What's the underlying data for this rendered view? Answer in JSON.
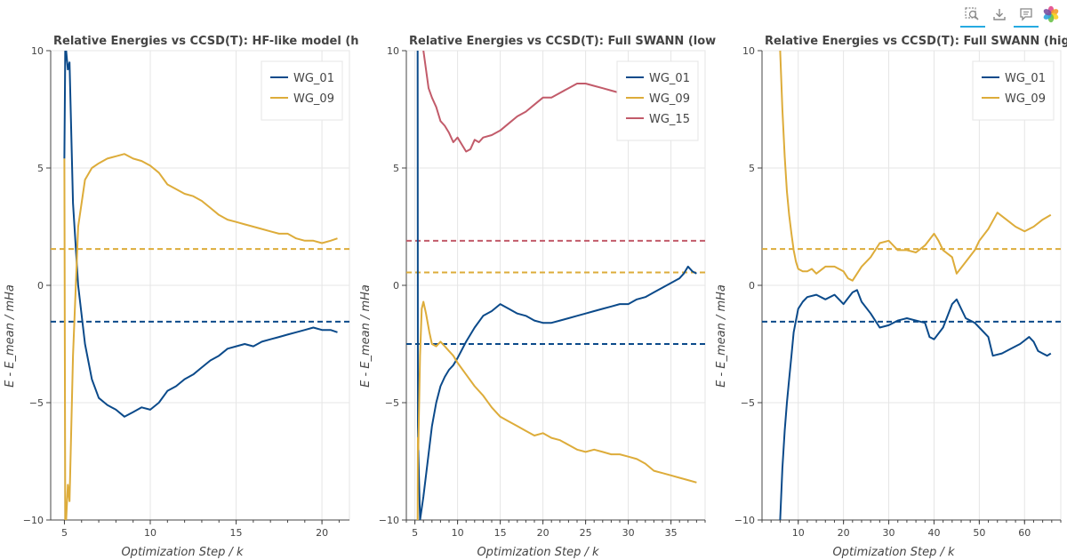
{
  "toolbar": {
    "icons": [
      "box-zoom-icon",
      "save-icon",
      "hover-icon",
      "bokeh-logo"
    ]
  },
  "colors": {
    "WG_01": "#0b4a8a",
    "WG_09": "#ddac3a",
    "WG_15": "#c25b6a"
  },
  "chart_data": [
    {
      "type": "line",
      "title": "Relative Energies vs CCSD(T): HF-like model (h",
      "xlabel": "Optimization Step / k",
      "ylabel": "E - E_mean / mHa",
      "xlim": [
        4.2,
        21.6
      ],
      "ylim": [
        -10,
        10
      ],
      "xticks": [
        5,
        10,
        15,
        20
      ],
      "yticks": [
        -10,
        -5,
        0,
        5,
        10
      ],
      "grid": true,
      "legend": "top-right",
      "series": [
        {
          "name": "WG_01",
          "color": "#0b4a8a",
          "x": [
            5.0,
            5.05,
            5.1,
            5.2,
            5.3,
            5.5,
            5.8,
            6.2,
            6.6,
            7.0,
            7.5,
            8.0,
            8.5,
            9.0,
            9.5,
            10.0,
            10.5,
            11.0,
            11.5,
            12.0,
            12.5,
            13.0,
            13.5,
            14.0,
            14.5,
            15.0,
            15.5,
            16.0,
            16.5,
            17.0,
            17.5,
            18.0,
            18.5,
            19.0,
            19.5,
            20.0,
            20.5,
            20.9
          ],
          "y": [
            5.4,
            10.0,
            10.0,
            9.2,
            9.5,
            3.5,
            0.0,
            -2.5,
            -4.0,
            -4.8,
            -5.1,
            -5.3,
            -5.6,
            -5.4,
            -5.2,
            -5.3,
            -5.0,
            -4.5,
            -4.3,
            -4.0,
            -3.8,
            -3.5,
            -3.2,
            -3.0,
            -2.7,
            -2.6,
            -2.5,
            -2.6,
            -2.4,
            -2.3,
            -2.2,
            -2.1,
            -2.0,
            -1.9,
            -1.8,
            -1.9,
            -1.9,
            -2.0
          ]
        },
        {
          "name": "WG_09",
          "color": "#ddac3a",
          "x": [
            5.0,
            5.05,
            5.1,
            5.2,
            5.3,
            5.5,
            5.8,
            6.2,
            6.6,
            7.0,
            7.5,
            8.0,
            8.5,
            9.0,
            9.5,
            10.0,
            10.5,
            11.0,
            11.5,
            12.0,
            12.5,
            13.0,
            13.5,
            14.0,
            14.5,
            15.0,
            15.5,
            16.0,
            16.5,
            17.0,
            17.5,
            18.0,
            18.5,
            19.0,
            19.5,
            20.0,
            20.5,
            20.9
          ],
          "y": [
            5.4,
            -10.0,
            -10.0,
            -8.5,
            -9.2,
            -3.0,
            2.5,
            4.5,
            5.0,
            5.2,
            5.4,
            5.5,
            5.6,
            5.4,
            5.3,
            5.1,
            4.8,
            4.3,
            4.1,
            3.9,
            3.8,
            3.6,
            3.3,
            3.0,
            2.8,
            2.7,
            2.6,
            2.5,
            2.4,
            2.3,
            2.2,
            2.2,
            2.0,
            1.9,
            1.9,
            1.8,
            1.9,
            2.0
          ]
        }
      ],
      "hlines": [
        {
          "series": "WG_09",
          "y": 1.55,
          "color": "#ddac3a"
        },
        {
          "series": "WG_01",
          "y": -1.55,
          "color": "#0b4a8a"
        }
      ]
    },
    {
      "type": "line",
      "title": "Relative Energies vs CCSD(T): Full SWANN (low",
      "xlabel": "Optimization Step / k",
      "ylabel": "E - E_mean / mHa",
      "xlim": [
        4.0,
        39.0
      ],
      "ylim": [
        -10,
        10
      ],
      "xticks": [
        5,
        10,
        15,
        20,
        25,
        30,
        35
      ],
      "yticks": [
        -10,
        -5,
        0,
        5,
        10
      ],
      "grid": true,
      "legend": "top-right",
      "series": [
        {
          "name": "WG_01",
          "color": "#0b4a8a",
          "x": [
            5.3,
            5.32,
            5.35,
            5.4,
            5.6,
            6.0,
            6.5,
            7.0,
            7.5,
            8.0,
            8.5,
            9.0,
            9.5,
            10.0,
            11.0,
            12.0,
            13.0,
            14.0,
            15.0,
            16.0,
            17.0,
            18.0,
            19.0,
            20.0,
            21.0,
            22.0,
            23.0,
            24.0,
            25.0,
            26.0,
            27.0,
            28.0,
            29.0,
            30.0,
            31.0,
            32.0,
            33.0,
            34.0,
            35.0,
            36.0,
            36.5,
            37.0,
            37.5,
            38.0
          ],
          "y": [
            10.0,
            10.0,
            -6.0,
            -7.0,
            -10.0,
            -9.0,
            -7.5,
            -6.0,
            -5.0,
            -4.3,
            -3.9,
            -3.6,
            -3.4,
            -3.1,
            -2.4,
            -1.8,
            -1.3,
            -1.1,
            -0.8,
            -1.0,
            -1.2,
            -1.3,
            -1.5,
            -1.6,
            -1.6,
            -1.5,
            -1.4,
            -1.3,
            -1.2,
            -1.1,
            -1.0,
            -0.9,
            -0.8,
            -0.8,
            -0.6,
            -0.5,
            -0.3,
            -0.1,
            0.1,
            0.3,
            0.5,
            0.8,
            0.6,
            0.5
          ]
        },
        {
          "name": "WG_09",
          "color": "#ddac3a",
          "x": [
            5.3,
            5.32,
            5.35,
            5.4,
            5.6,
            5.8,
            6.0,
            6.3,
            6.7,
            7.0,
            7.5,
            8.0,
            8.5,
            9.0,
            9.5,
            10.0,
            11.0,
            12.0,
            13.0,
            14.0,
            15.0,
            16.0,
            17.0,
            18.0,
            19.0,
            20.0,
            21.0,
            22.0,
            23.0,
            24.0,
            25.0,
            26.0,
            27.0,
            28.0,
            29.0,
            30.0,
            31.0,
            32.0,
            33.0,
            34.0,
            35.0,
            36.0,
            37.0,
            38.0
          ],
          "y": [
            -10.0,
            -10.0,
            -6.5,
            -7.0,
            -3.0,
            -1.0,
            -0.7,
            -1.2,
            -2.0,
            -2.5,
            -2.6,
            -2.4,
            -2.6,
            -2.8,
            -3.0,
            -3.3,
            -3.8,
            -4.3,
            -4.7,
            -5.2,
            -5.6,
            -5.8,
            -6.0,
            -6.2,
            -6.4,
            -6.3,
            -6.5,
            -6.6,
            -6.8,
            -7.0,
            -7.1,
            -7.0,
            -7.1,
            -7.2,
            -7.2,
            -7.3,
            -7.4,
            -7.6,
            -7.9,
            -8.0,
            -8.1,
            -8.2,
            -8.3,
            -8.4
          ]
        },
        {
          "name": "WG_15",
          "color": "#c25b6a",
          "x": [
            6.0,
            6.3,
            6.6,
            7.0,
            7.5,
            8.0,
            8.5,
            9.0,
            9.5,
            10.0,
            10.5,
            11.0,
            11.5,
            12.0,
            12.5,
            13.0,
            14.0,
            15.0,
            16.0,
            17.0,
            18.0,
            19.0,
            20.0,
            21.0,
            22.0,
            23.0,
            24.0,
            25.0,
            26.0,
            27.0,
            28.0,
            29.0
          ],
          "y": [
            10.0,
            9.2,
            8.4,
            8.0,
            7.6,
            7.0,
            6.8,
            6.5,
            6.1,
            6.3,
            6.0,
            5.7,
            5.8,
            6.2,
            6.1,
            6.3,
            6.4,
            6.6,
            6.9,
            7.2,
            7.4,
            7.7,
            8.0,
            8.0,
            8.2,
            8.4,
            8.6,
            8.6,
            8.5,
            8.4,
            8.3,
            8.2
          ]
        }
      ],
      "hlines": [
        {
          "series": "WG_15",
          "y": 1.9,
          "color": "#c25b6a"
        },
        {
          "series": "WG_09",
          "y": 0.55,
          "color": "#ddac3a"
        },
        {
          "series": "WG_01",
          "y": -2.5,
          "color": "#0b4a8a"
        }
      ]
    },
    {
      "type": "line",
      "title": "Relative Energies vs CCSD(T): Full SWANN (hig",
      "xlabel": "Optimization Step / k",
      "ylabel": "E - E_mean / mHa",
      "xlim": [
        2.0,
        68.0
      ],
      "ylim": [
        -10,
        10
      ],
      "xticks": [
        10,
        20,
        30,
        40,
        50,
        60
      ],
      "yticks": [
        -10,
        -5,
        0,
        5,
        10
      ],
      "grid": true,
      "legend": "top-right",
      "series": [
        {
          "name": "WG_01",
          "color": "#0b4a8a",
          "x": [
            6.0,
            6.5,
            7.0,
            7.5,
            8.0,
            8.5,
            9.0,
            10.0,
            11.0,
            12.0,
            14.0,
            16.0,
            18.0,
            20.0,
            22.0,
            23.0,
            24.0,
            26.0,
            28.0,
            30.0,
            32.0,
            34.0,
            36.0,
            38.0,
            39.0,
            40.0,
            42.0,
            44.0,
            45.0,
            47.0,
            49.0,
            50.0,
            52.0,
            53.0,
            55.0,
            57.0,
            59.0,
            61.0,
            62.0,
            63.0,
            64.0,
            65.0,
            65.8
          ],
          "y": [
            -10.0,
            -7.8,
            -6.2,
            -5.0,
            -4.0,
            -3.0,
            -2.0,
            -1.0,
            -0.7,
            -0.5,
            -0.4,
            -0.6,
            -0.4,
            -0.8,
            -0.3,
            -0.2,
            -0.7,
            -1.2,
            -1.8,
            -1.7,
            -1.5,
            -1.4,
            -1.5,
            -1.6,
            -2.2,
            -2.3,
            -1.8,
            -0.8,
            -0.6,
            -1.4,
            -1.6,
            -1.8,
            -2.2,
            -3.0,
            -2.9,
            -2.7,
            -2.5,
            -2.2,
            -2.4,
            -2.8,
            -2.9,
            -3.0,
            -2.9
          ]
        },
        {
          "name": "WG_09",
          "color": "#ddac3a",
          "x": [
            6.0,
            6.5,
            7.0,
            7.5,
            8.0,
            8.5,
            9.0,
            9.5,
            10.0,
            11.0,
            12.0,
            13.0,
            14.0,
            16.0,
            18.0,
            20.0,
            21.0,
            22.0,
            24.0,
            26.0,
            28.0,
            30.0,
            32.0,
            34.0,
            36.0,
            38.0,
            40.0,
            41.0,
            42.0,
            44.0,
            45.0,
            47.0,
            49.0,
            50.0,
            52.0,
            54.0,
            56.0,
            58.0,
            60.0,
            62.0,
            64.0,
            65.8
          ],
          "y": [
            10.0,
            7.5,
            5.5,
            4.0,
            3.0,
            2.2,
            1.5,
            1.0,
            0.7,
            0.6,
            0.6,
            0.7,
            0.5,
            0.8,
            0.8,
            0.6,
            0.3,
            0.2,
            0.8,
            1.2,
            1.8,
            1.9,
            1.5,
            1.5,
            1.4,
            1.7,
            2.2,
            1.9,
            1.5,
            1.2,
            0.5,
            1.0,
            1.5,
            1.9,
            2.4,
            3.1,
            2.8,
            2.5,
            2.3,
            2.5,
            2.8,
            3.0
          ]
        }
      ],
      "hlines": [
        {
          "series": "WG_09",
          "y": 1.55,
          "color": "#ddac3a"
        },
        {
          "series": "WG_01",
          "y": -1.55,
          "color": "#0b4a8a"
        }
      ]
    }
  ]
}
